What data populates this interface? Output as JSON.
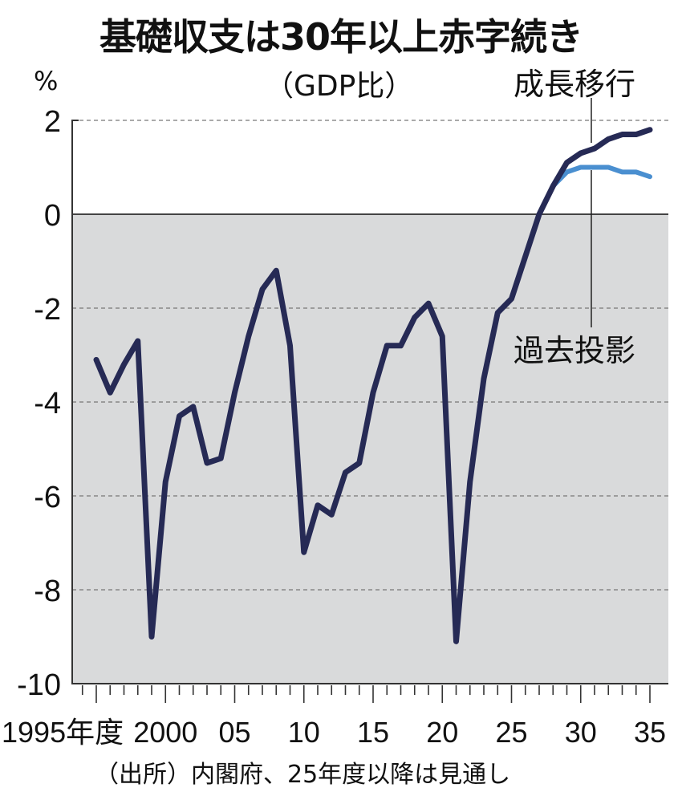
{
  "chart_data": {
    "type": "line",
    "title": "基礎収支は30年以上赤字続き",
    "subtitle": "（GDP比）",
    "ylabel": "%",
    "ylim": [
      -10,
      2
    ],
    "yticks": [
      2,
      0,
      -2,
      -4,
      -6,
      -8,
      -10
    ],
    "ytick_labels": [
      "2",
      "0",
      "-2",
      "-4",
      "-6",
      "-8",
      "-10"
    ],
    "xlim": [
      1994,
      2036
    ],
    "xticks": [
      1995,
      2000,
      2005,
      2010,
      2015,
      2020,
      2025,
      2030,
      2035
    ],
    "xtick_labels": [
      "1995年度",
      "2000",
      "05",
      "10",
      "15",
      "20",
      "25",
      "30",
      "35"
    ],
    "grid": "dashed horizontal",
    "source": "（出所）内閣府、25年度以降は見通し",
    "series": [
      {
        "name": "成長移行",
        "color": "#262a55",
        "x": [
          1995,
          1996,
          1997,
          1998,
          1999,
          2000,
          2001,
          2002,
          2003,
          2004,
          2005,
          2006,
          2007,
          2008,
          2009,
          2010,
          2011,
          2012,
          2013,
          2014,
          2015,
          2016,
          2017,
          2018,
          2019,
          2020,
          2021,
          2022,
          2023,
          2024,
          2025,
          2026,
          2027,
          2028,
          2029,
          2030,
          2031,
          2032,
          2033,
          2034,
          2035
        ],
        "values": [
          -3.1,
          -3.8,
          -3.2,
          -2.7,
          -9.0,
          -5.7,
          -4.3,
          -4.1,
          -5.3,
          -5.2,
          -3.8,
          -2.6,
          -1.6,
          -1.2,
          -2.8,
          -7.2,
          -6.2,
          -6.4,
          -5.5,
          -5.3,
          -3.8,
          -2.8,
          -2.8,
          -2.2,
          -1.9,
          -2.6,
          -9.1,
          -5.7,
          -3.5,
          -2.1,
          -1.8,
          -0.9,
          0.0,
          0.6,
          1.1,
          1.3,
          1.4,
          1.6,
          1.7,
          1.7,
          1.8
        ]
      },
      {
        "name": "過去投影",
        "color": "#4a8fd0",
        "x": [
          2028,
          2029,
          2030,
          2031,
          2032,
          2033,
          2034,
          2035
        ],
        "values": [
          0.6,
          0.9,
          1.0,
          1.0,
          1.0,
          0.9,
          0.9,
          0.8
        ]
      }
    ]
  }
}
